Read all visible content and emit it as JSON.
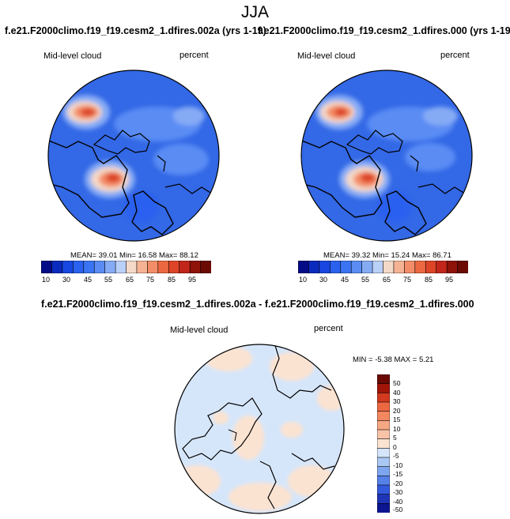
{
  "season_title": "JJA",
  "panels": [
    {
      "title": "f.e21.F2000climo.f19_f19.cesm2_1.dfires.002a (yrs 1-19)",
      "left_label": "Mid-level cloud",
      "right_label": "percent",
      "stats": "MEAN=  39.01  Min=  16.58  Max=  88.12"
    },
    {
      "title": "f.e21.F2000climo.f19_f19.cesm2_1.dfires.000 (yrs 1-19)",
      "left_label": "Mid-level cloud",
      "right_label": "percent",
      "stats": "MEAN=  39.32  Min=  15.24  Max=  86.71"
    }
  ],
  "diff_panel": {
    "title": "f.e21.F2000climo.f19_f19.cesm2_1.dfires.002a - f.e21.F2000climo.f19_f19.cesm2_1.dfires.000",
    "left_label": "Mid-level cloud",
    "right_label": "percent",
    "stats": "MIN =  -5.38 MAX =   5.21"
  },
  "chart_data": [
    {
      "type": "heatmap",
      "projection": "north polar stereographic",
      "title": "f.e21.F2000climo.f19_f19.cesm2_1.dfires.002a (yrs 1-19)",
      "field": "Mid-level cloud",
      "units": "percent",
      "mean": 39.01,
      "min": 16.58,
      "max": 88.12,
      "contour_levels": [
        "10",
        "20",
        "30",
        "40",
        "45",
        "50",
        "55",
        "60",
        "65",
        "70",
        "75",
        "80",
        "85",
        "90",
        "95"
      ],
      "colorbar_tick_labels": [
        "10",
        "30",
        "45",
        "55",
        "65",
        "75",
        "85",
        "95"
      ]
    },
    {
      "type": "heatmap",
      "projection": "north polar stereographic",
      "title": "f.e21.F2000climo.f19_f19.cesm2_1.dfires.000 (yrs 1-19)",
      "field": "Mid-level cloud",
      "units": "percent",
      "mean": 39.32,
      "min": 15.24,
      "max": 86.71,
      "contour_levels": [
        "10",
        "20",
        "30",
        "40",
        "45",
        "50",
        "55",
        "60",
        "65",
        "70",
        "75",
        "80",
        "85",
        "90",
        "95"
      ],
      "colorbar_tick_labels": [
        "10",
        "30",
        "45",
        "55",
        "65",
        "75",
        "85",
        "95"
      ]
    },
    {
      "type": "heatmap",
      "projection": "north polar stereographic",
      "title": "f.e21.F2000climo.f19_f19.cesm2_1.dfires.002a - f.e21.F2000climo.f19_f19.cesm2_1.dfires.000",
      "field": "Mid-level cloud",
      "units": "percent",
      "min": -5.38,
      "max": 5.21,
      "colorbar_tick_labels": [
        "50",
        "40",
        "30",
        "20",
        "15",
        "10",
        "5",
        "0",
        "-5",
        "-10",
        "-15",
        "-20",
        "-30",
        "-40",
        "-50"
      ]
    }
  ],
  "colors": {
    "abs_scale": [
      "#040b86",
      "#0a2bbd",
      "#1747e0",
      "#2a61ef",
      "#3b74f2",
      "#5a8cf4",
      "#86abf5",
      "#b9d0f8",
      "#f4d9c8",
      "#f6b394",
      "#f38d68",
      "#ec6841",
      "#dd4526",
      "#c2261a",
      "#8f1208",
      "#6b0a05"
    ],
    "diff_scale": [
      "#6b0a05",
      "#a11408",
      "#d2391f",
      "#ec6841",
      "#f3875f",
      "#f6a784",
      "#f8c4a8",
      "#fbe3d2",
      "#d6e6fa",
      "#aac8f3",
      "#7ea6ee",
      "#5681e9",
      "#3359dc",
      "#1f35b8",
      "#0b1690"
    ],
    "ocean_blue": "#3368e6",
    "diff_bg_pos": "#fbe3d2",
    "diff_bg_neg": "#d6e6fa"
  }
}
